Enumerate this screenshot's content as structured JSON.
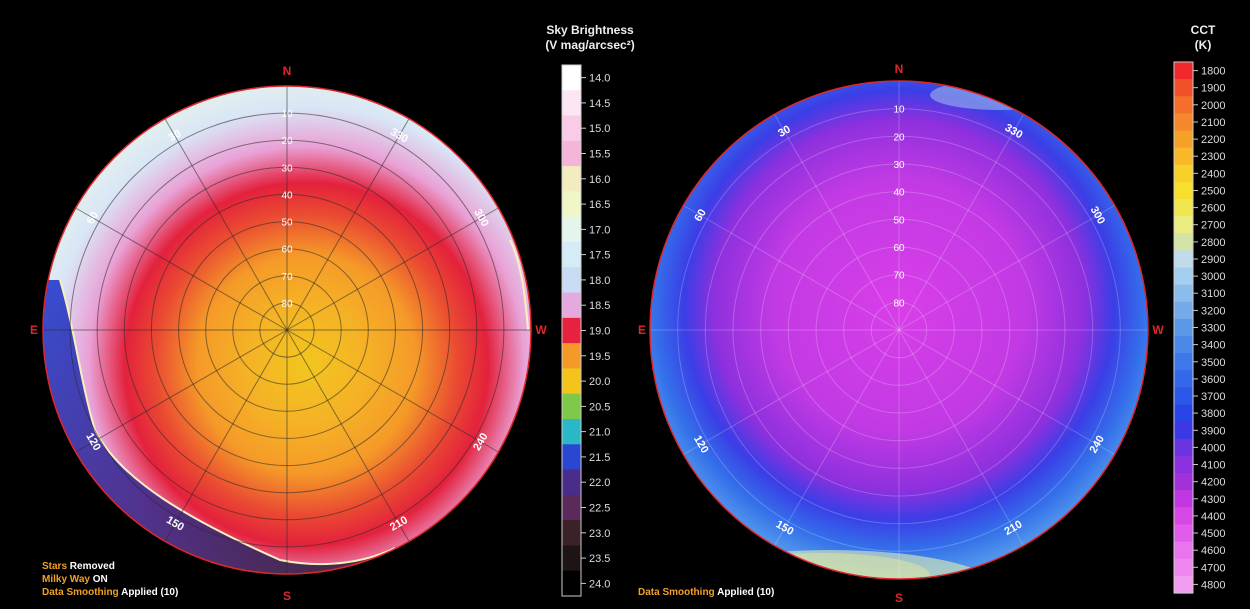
{
  "chart_data": [
    {
      "type": "polar-heatmap",
      "name_key": "sky_brightness",
      "legend": {
        "title_line1": "Sky Brightness",
        "title_line2": "(V mag/arcsec²)",
        "ticks": [
          "14.0",
          "14.5",
          "15.0",
          "15.5",
          "16.0",
          "16.5",
          "17.0",
          "17.5",
          "18.0",
          "18.5",
          "19.0",
          "19.5",
          "20.0",
          "20.5",
          "21.0",
          "21.5",
          "22.0",
          "22.5",
          "23.0",
          "23.5",
          "24.0"
        ],
        "colors": [
          "#ffffff",
          "#fce6f3",
          "#f9cbe6",
          "#f5b5d6",
          "#f3ecbe",
          "#f1f6c6",
          "#e4f6ec",
          "#d3ecf6",
          "#c8dcf4",
          "#e6a9df",
          "#e6223e",
          "#f59a28",
          "#f4c41a",
          "#7ec84a",
          "#28b8c8",
          "#2c46d4",
          "#4a2c8a",
          "#5a2a5a",
          "#3a2228",
          "#1e1414",
          "#000000"
        ]
      },
      "directions": {
        "n": "N",
        "e": "E",
        "s": "S",
        "w": "W"
      },
      "azimuth_labels": [
        "30",
        "60",
        "120",
        "150",
        "210",
        "240",
        "300",
        "330"
      ],
      "altitude_labels": [
        "80",
        "70",
        "60",
        "50",
        "40",
        "30",
        "20",
        "10"
      ],
      "notes": [
        {
          "key": "Stars",
          "value": "Removed"
        },
        {
          "key": "Milky Way",
          "value": "ON"
        },
        {
          "key": "Data Smoothing",
          "value": "Applied (10)"
        }
      ]
    },
    {
      "type": "polar-heatmap",
      "name_key": "cct",
      "legend": {
        "title_line1": "CCT",
        "title_line2": "(K)",
        "ticks": [
          "1800",
          "1900",
          "2000",
          "2100",
          "2200",
          "2300",
          "2400",
          "2500",
          "2600",
          "2700",
          "2800",
          "2900",
          "3000",
          "3100",
          "3200",
          "3300",
          "3400",
          "3500",
          "3600",
          "3700",
          "3800",
          "3900",
          "4000",
          "4100",
          "4200",
          "4300",
          "4400",
          "4500",
          "4600",
          "4700",
          "4800"
        ],
        "colors": [
          "#f0282a",
          "#f2502a",
          "#f4702a",
          "#f5882a",
          "#f6a02a",
          "#f8b82a",
          "#f8d02a",
          "#f6e02c",
          "#f0e650",
          "#ecec80",
          "#d4e4a6",
          "#c0dcec",
          "#a6cef0",
          "#8cbcec",
          "#74aaea",
          "#5c98e8",
          "#4c88e8",
          "#3c78ea",
          "#3468ea",
          "#2c58ea",
          "#2846e8",
          "#3c38e4",
          "#6a34e0",
          "#8a30de",
          "#a430dc",
          "#c038e2",
          "#d848e8",
          "#e25cec",
          "#e874ee",
          "#ee88f0",
          "#f29cf2"
        ]
      },
      "directions": {
        "n": "N",
        "e": "E",
        "s": "S",
        "w": "W"
      },
      "azimuth_labels": [
        "30",
        "60",
        "120",
        "150",
        "210",
        "240",
        "300",
        "330"
      ],
      "altitude_labels": [
        "80",
        "70",
        "60",
        "50",
        "40",
        "30",
        "20",
        "10"
      ],
      "notes": [
        {
          "key": "Data Smoothing",
          "value": "Applied (10)"
        }
      ]
    }
  ]
}
